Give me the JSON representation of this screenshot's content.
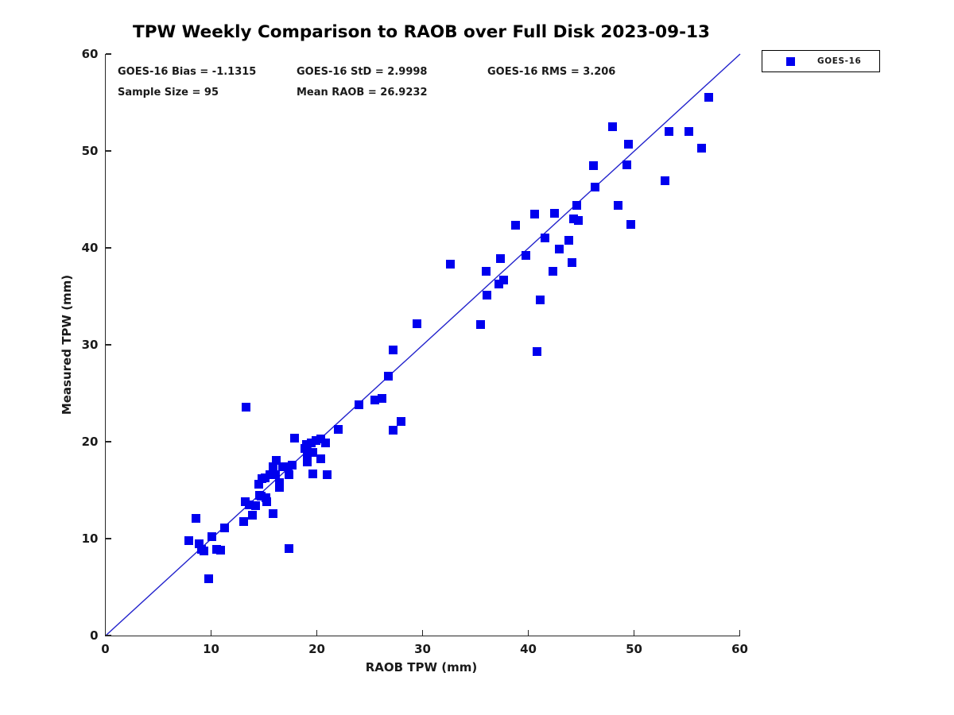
{
  "title": "TPW Weekly Comparison to RAOB over Full Disk 2023-09-13",
  "stats": {
    "bias": "GOES-16 Bias = -1.1315",
    "std": "GOES-16 StD = 2.9998",
    "rms": "GOES-16 RMS = 3.206",
    "sample_size": "Sample Size = 95",
    "mean_raob": "Mean RAOB = 26.9232"
  },
  "legend": {
    "entries": [
      {
        "label": "GOES-16",
        "marker": "filled-square",
        "color": "#0000EE"
      }
    ],
    "position": "top-right-outside"
  },
  "colors": {
    "marker": "#0000EE",
    "reference_line": "#2222CC",
    "axis": "#262626",
    "text": "#1a1a1a"
  },
  "chart_data": {
    "type": "scatter",
    "title": "TPW Weekly Comparison to RAOB over Full Disk 2023-09-13",
    "xlabel": "RAOB TPW (mm)",
    "ylabel": "Measured TPW (mm)",
    "xlim": [
      0,
      60
    ],
    "ylim": [
      0,
      60
    ],
    "x_ticks": [
      0,
      10,
      20,
      30,
      40,
      50,
      60
    ],
    "y_ticks": [
      0,
      10,
      20,
      30,
      40,
      50,
      60
    ],
    "grid": false,
    "legend_position": "outside-top-right",
    "reference_line": {
      "from": [
        0,
        0
      ],
      "to": [
        60,
        60
      ],
      "meaning": "1:1 agreement line"
    },
    "annotations": [
      "GOES-16 Bias = -1.1315",
      "GOES-16 StD = 2.9998",
      "GOES-16 RMS = 3.206",
      "Sample Size = 95",
      "Mean RAOB = 26.9232"
    ],
    "series": [
      {
        "name": "GOES-16",
        "marker": "square",
        "color": "#0000EE",
        "points": [
          [
            7.9,
            9.8
          ],
          [
            8.6,
            12.1
          ],
          [
            8.9,
            9.5
          ],
          [
            9.1,
            8.9
          ],
          [
            9.3,
            8.7
          ],
          [
            9.8,
            5.9
          ],
          [
            10.1,
            10.2
          ],
          [
            10.5,
            8.9
          ],
          [
            10.9,
            8.8
          ],
          [
            11.3,
            11.1
          ],
          [
            13.1,
            11.8
          ],
          [
            13.2,
            13.8
          ],
          [
            13.3,
            23.6
          ],
          [
            13.6,
            13.5
          ],
          [
            13.9,
            12.4
          ],
          [
            14.2,
            13.4
          ],
          [
            14.5,
            15.6
          ],
          [
            14.6,
            14.5
          ],
          [
            14.7,
            14.4
          ],
          [
            14.8,
            16.2
          ],
          [
            15.2,
            14.2
          ],
          [
            15.3,
            13.8
          ],
          [
            15.9,
            12.6
          ],
          [
            15.1,
            16.3
          ],
          [
            15.6,
            16.6
          ],
          [
            16.1,
            16.6
          ],
          [
            15.9,
            17.4
          ],
          [
            16.2,
            18.1
          ],
          [
            16.5,
            15.8
          ],
          [
            16.5,
            15.3
          ],
          [
            16.8,
            17.4
          ],
          [
            17.3,
            17.4
          ],
          [
            17.4,
            16.6
          ],
          [
            17.7,
            17.6
          ],
          [
            17.9,
            20.4
          ],
          [
            17.4,
            9.0
          ],
          [
            18.9,
            19.3
          ],
          [
            19.0,
            19.7
          ],
          [
            19.1,
            18.4
          ],
          [
            19.1,
            17.9
          ],
          [
            19.5,
            19.9
          ],
          [
            19.6,
            18.9
          ],
          [
            19.6,
            16.7
          ],
          [
            19.9,
            20.1
          ],
          [
            20.4,
            20.3
          ],
          [
            20.4,
            18.2
          ],
          [
            20.8,
            19.9
          ],
          [
            21.0,
            16.6
          ],
          [
            22.0,
            21.3
          ],
          [
            24.0,
            23.8
          ],
          [
            25.5,
            24.3
          ],
          [
            26.2,
            24.5
          ],
          [
            27.2,
            21.2
          ],
          [
            28.0,
            22.1
          ],
          [
            26.8,
            26.8
          ],
          [
            27.2,
            29.5
          ],
          [
            29.5,
            32.2
          ],
          [
            32.6,
            38.3
          ],
          [
            35.5,
            32.1
          ],
          [
            36.1,
            35.1
          ],
          [
            36.0,
            37.6
          ],
          [
            37.2,
            36.3
          ],
          [
            37.7,
            36.7
          ],
          [
            37.4,
            38.9
          ],
          [
            38.8,
            42.3
          ],
          [
            39.8,
            39.2
          ],
          [
            40.6,
            43.5
          ],
          [
            40.8,
            29.3
          ],
          [
            41.1,
            34.6
          ],
          [
            41.6,
            41.0
          ],
          [
            42.3,
            37.6
          ],
          [
            42.5,
            43.6
          ],
          [
            42.9,
            39.9
          ],
          [
            43.8,
            40.8
          ],
          [
            44.1,
            38.5
          ],
          [
            44.3,
            43.0
          ],
          [
            44.7,
            42.8
          ],
          [
            44.6,
            44.4
          ],
          [
            46.2,
            48.5
          ],
          [
            46.3,
            46.3
          ],
          [
            48.0,
            52.5
          ],
          [
            48.5,
            44.4
          ],
          [
            49.3,
            48.6
          ],
          [
            49.5,
            50.7
          ],
          [
            49.7,
            42.4
          ],
          [
            52.9,
            46.9
          ],
          [
            53.3,
            52.0
          ],
          [
            55.2,
            52.0
          ],
          [
            56.4,
            50.3
          ],
          [
            57.1,
            55.5
          ]
        ]
      }
    ]
  }
}
